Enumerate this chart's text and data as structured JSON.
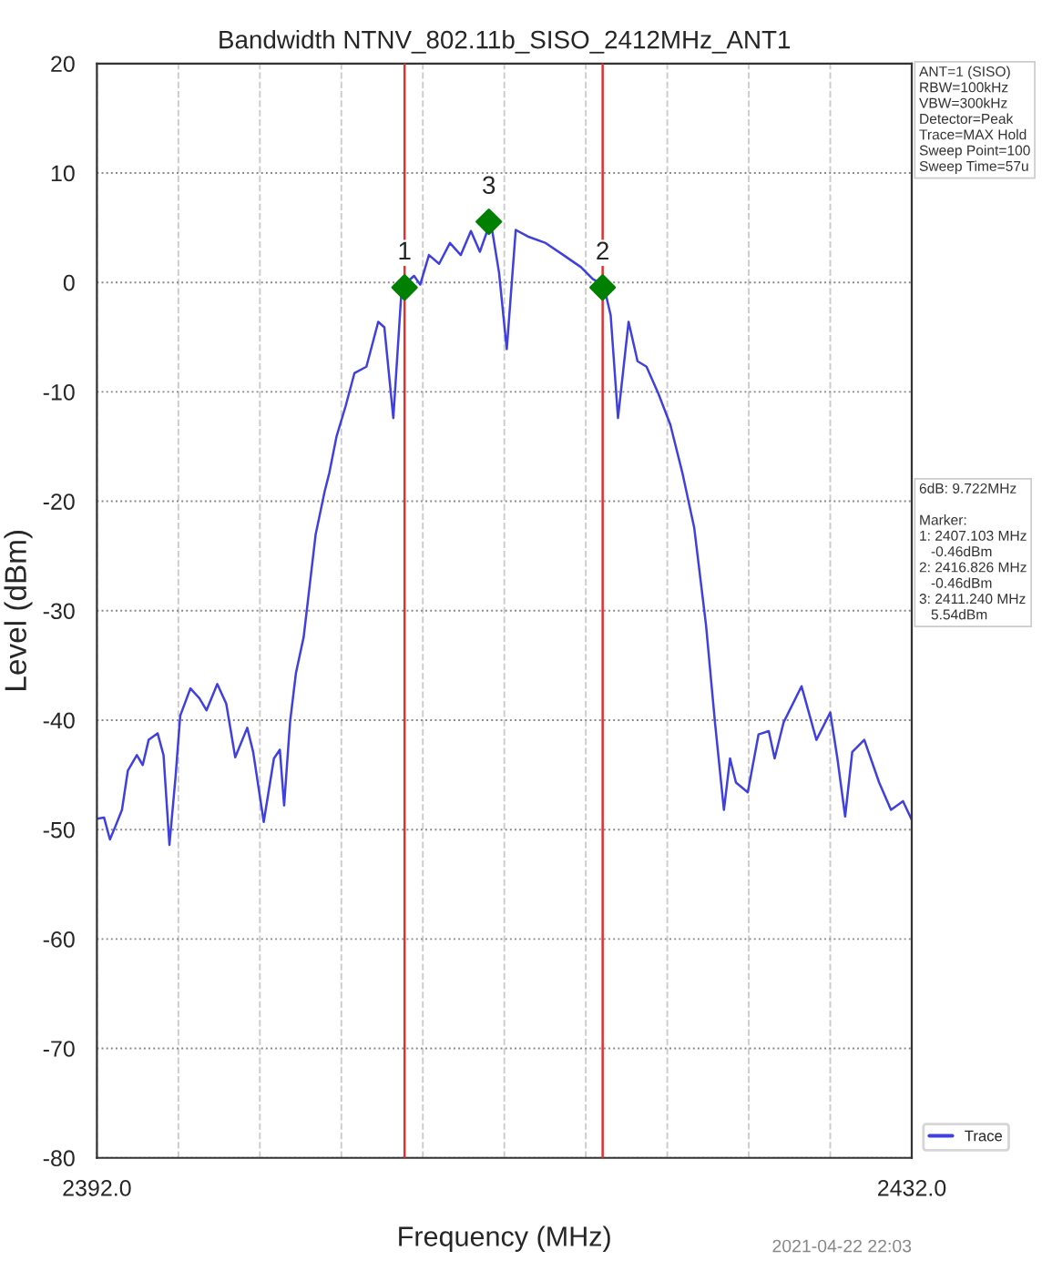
{
  "chart_data": {
    "type": "line",
    "title": "Bandwidth NTNV_802.11b_SISO_2412MHz_ANT1",
    "xlabel": "Frequency (MHz)",
    "ylabel": "Level (dBm)",
    "xlim": [
      2392,
      2432
    ],
    "xticks": [
      {
        "value": 2392,
        "label": "2392.0"
      },
      {
        "value": 2396,
        "label": null
      },
      {
        "value": 2400,
        "label": null
      },
      {
        "value": 2404,
        "label": null
      },
      {
        "value": 2408,
        "label": null
      },
      {
        "value": 2412,
        "label": null
      },
      {
        "value": 2416,
        "label": null
      },
      {
        "value": 2420,
        "label": null
      },
      {
        "value": 2424,
        "label": null
      },
      {
        "value": 2428,
        "label": null
      },
      {
        "value": 2432,
        "label": "2432.0"
      }
    ],
    "ylim": [
      -80,
      20
    ],
    "yticks": [
      -80,
      -70,
      -60,
      -50,
      -40,
      -30,
      -20,
      -10,
      0,
      10,
      20
    ],
    "grid": true,
    "legend": "bottom right",
    "series": [
      {
        "name": "Trace",
        "color": "#4040e0",
        "x": [
          2392.0,
          2392.35,
          2392.64,
          2392.93,
          2393.23,
          2393.52,
          2393.96,
          2394.25,
          2394.54,
          2394.98,
          2395.27,
          2395.56,
          2395.86,
          2396.09,
          2396.59,
          2397.03,
          2397.38,
          2397.91,
          2398.35,
          2398.79,
          2399.38,
          2399.67,
          2400.19,
          2400.69,
          2400.98,
          2401.19,
          2401.48,
          2401.77,
          2402.15,
          2402.74,
          2403.18,
          2403.41,
          2403.76,
          2404.21,
          2404.64,
          2405.23,
          2405.81,
          2406.11,
          2406.55,
          2406.93,
          2407.2,
          2407.57,
          2407.87,
          2408.3,
          2408.8,
          2409.33,
          2409.86,
          2410.36,
          2410.8,
          2411.33,
          2411.74,
          2412.12,
          2412.56,
          2413.15,
          2414.03,
          2414.9,
          2415.76,
          2416.35,
          2416.87,
          2417.22,
          2417.58,
          2418.1,
          2418.54,
          2418.98,
          2419.57,
          2420.15,
          2420.74,
          2421.32,
          2421.9,
          2422.34,
          2422.78,
          2423.08,
          2423.37,
          2423.95,
          2424.48,
          2424.98,
          2425.27,
          2425.71,
          2426.59,
          2427.32,
          2428.0,
          2428.35,
          2428.73,
          2429.08,
          2429.67,
          2430.4,
          2430.98,
          2431.57,
          2432.0
        ],
        "values": [
          -49.0,
          -48.9,
          -50.9,
          -49.6,
          -48.2,
          -44.6,
          -43.2,
          -44.1,
          -41.8,
          -41.2,
          -43.2,
          -51.4,
          -45.2,
          -39.6,
          -37.1,
          -38.0,
          -39.1,
          -36.7,
          -38.5,
          -43.4,
          -40.7,
          -42.9,
          -49.3,
          -43.5,
          -42.7,
          -47.8,
          -40.2,
          -35.7,
          -32.4,
          -23.0,
          -19.1,
          -17.4,
          -14.1,
          -11.3,
          -8.3,
          -7.7,
          -3.6,
          -4.1,
          -12.4,
          -1.4,
          0.0,
          0.6,
          -0.2,
          2.5,
          1.7,
          3.6,
          2.5,
          4.7,
          2.8,
          5.6,
          0.9,
          -6.1,
          4.8,
          4.2,
          3.6,
          2.5,
          1.4,
          0.3,
          -0.2,
          -3.0,
          -12.4,
          -3.6,
          -7.2,
          -7.7,
          -10.2,
          -13.0,
          -17.4,
          -22.4,
          -31.3,
          -40.2,
          -48.2,
          -43.5,
          -45.7,
          -46.6,
          -41.3,
          -41.0,
          -43.5,
          -40.2,
          -36.9,
          -41.8,
          -39.3,
          -43.5,
          -48.8,
          -42.9,
          -41.8,
          -45.7,
          -48.2,
          -47.4,
          -49.1
        ]
      },
      {
        "type": "scatter",
        "marker": "diamond",
        "color": "#008000",
        "x": [
          2407.103,
          2416.826,
          2411.24
        ],
        "values": [
          -0.46,
          -0.46,
          5.54
        ]
      }
    ],
    "ref_lines": [
      {
        "axis": "x",
        "value": 2407.103,
        "color": "#e03030"
      },
      {
        "axis": "x",
        "value": 2416.826,
        "color": "#e03030"
      }
    ],
    "annotations": [
      {
        "text": "1",
        "x": 2407.103,
        "y": -0.46
      },
      {
        "text": "2",
        "x": 2416.826,
        "y": -0.46
      },
      {
        "text": "3",
        "x": 2411.24,
        "y": 5.54
      },
      "ANT=1 (SISO)\nRBW=100kHz\nVBW=300kHz\nDetector=Peak\nTrace=MAX Hold\nSweep Point=100\nSweep Time=57u",
      "6dB: 9.722MHz\n\nMarker:\n1: 2407.103 MHz\n   -0.46dBm\n2: 2416.826 MHz\n   -0.46dBm\n3: 2411.240 MHz\n   5.54dBm",
      "2021-04-22 22:03"
    ]
  }
}
